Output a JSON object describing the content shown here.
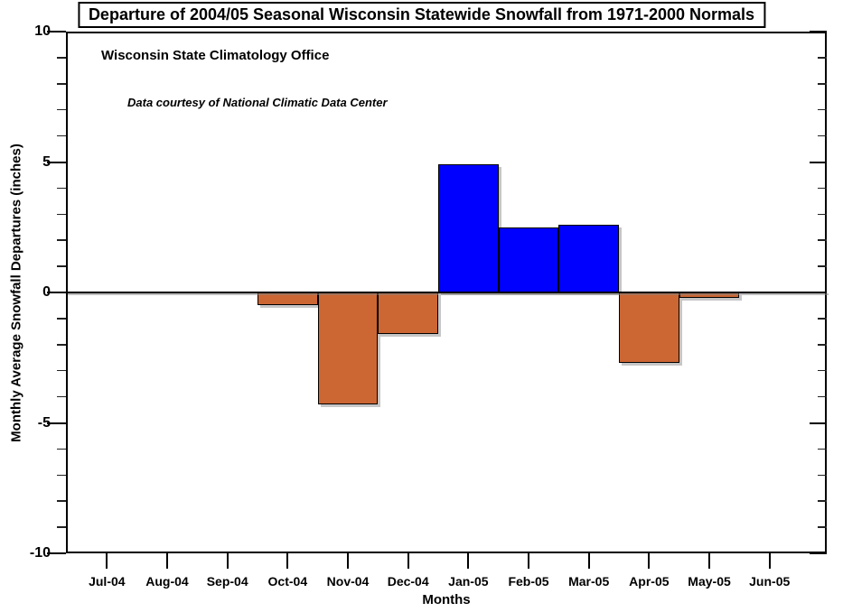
{
  "title": "Departure of 2004/05 Seasonal Wisconsin Statewide Snowfall from  1971-2000 Normals",
  "annotations": {
    "office": "Wisconsin State Climatology Office",
    "courtesy": "Data courtesy of National Climatic Data Center"
  },
  "chart_data": {
    "type": "bar",
    "title": "Departure of 2004/05 Seasonal Wisconsin Statewide Snowfall from  1971-2000 Normals",
    "categories": [
      "Jul-04",
      "Aug-04",
      "Sep-04",
      "Oct-04",
      "Nov-04",
      "Dec-04",
      "Jan-05",
      "Feb-05",
      "Mar-05",
      "Apr-05",
      "May-05",
      "Jun-05"
    ],
    "values": [
      0,
      0,
      0,
      -0.5,
      -4.3,
      -1.6,
      4.9,
      2.5,
      2.6,
      -2.7,
      -0.2,
      0
    ],
    "xlabel": "Months",
    "ylabel": "Monthly Average Snowfall Departures (inches)",
    "ylim": [
      -10,
      10
    ],
    "ytick_major_values": [
      10,
      5,
      0,
      -5,
      -10
    ],
    "ytick_major_labels": [
      "10",
      "5",
      "0",
      "-5",
      "-10"
    ],
    "ytick_minor_step": 1,
    "grid": false,
    "legend": "none",
    "colors": {
      "positive_bar": "#0000FF",
      "negative_bar": "#CC6633",
      "bar_border": "#000000",
      "axis": "#000000",
      "shadow": "#808080",
      "background": "#FFFFFF"
    }
  }
}
